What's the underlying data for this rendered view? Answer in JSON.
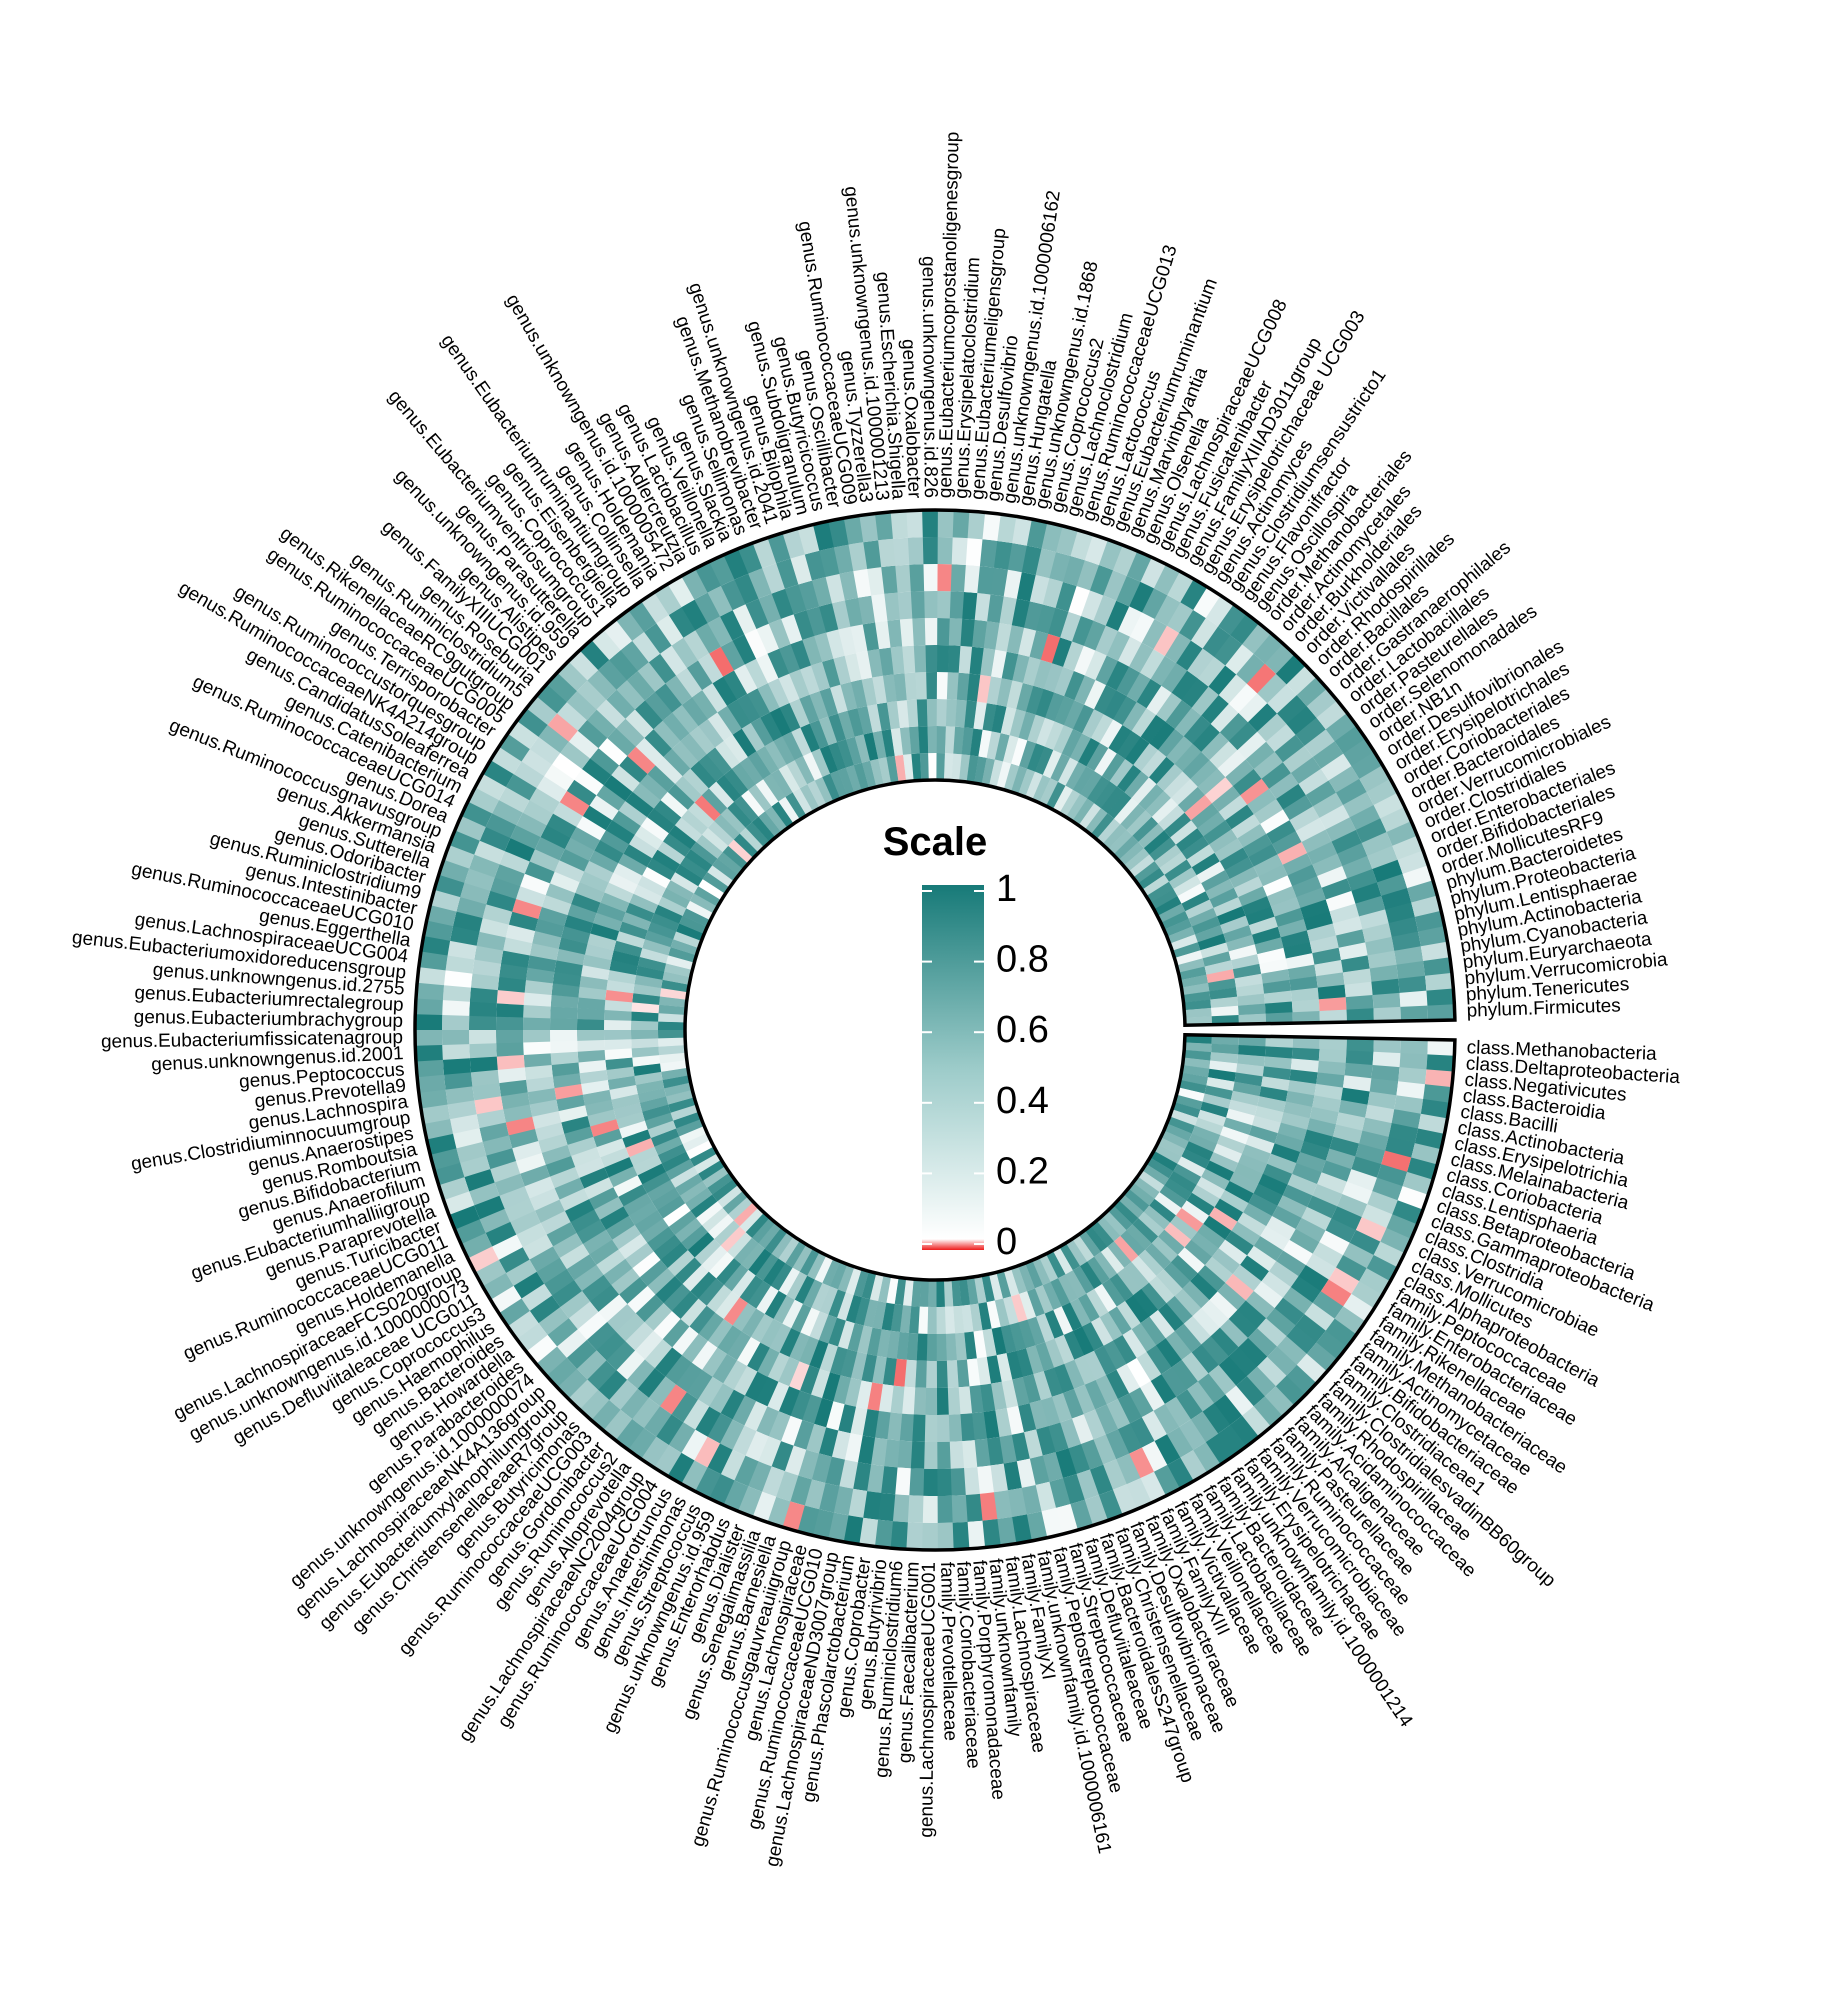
{
  "chart_data": {
    "type": "heatmap",
    "layout": "circular",
    "rings": 10,
    "legend": {
      "title": "Scale",
      "ticks": [
        "1",
        "0.8",
        "0.6",
        "0.4",
        "0.2",
        "0"
      ],
      "tick_values": [
        1,
        0.8,
        0.6,
        0.4,
        0.2,
        0
      ],
      "colors": {
        "high": "#177a78",
        "mid": "#ffffff",
        "zero": "#ee1c1c"
      }
    },
    "labels": [
      "class.Methanobacteria",
      "class.Deltaproteobacteria",
      "class.Negativicutes",
      "class.Bacteroidia",
      "class.Bacilli",
      "class.Actinobacteria",
      "class.Erysipelotrichia",
      "class.Melainabacteria",
      "class.Coriobacteria",
      "class.Lentisphaeria",
      "class.Betaproteobacteria",
      "class.Gammaproteobacteria",
      "class.Clostridia",
      "class.Verrucomicrobiae",
      "class.Mollicutes",
      "class.Alphaproteobacteria",
      "family.Peptococcaceae",
      "family.Enterobacteriaceae",
      "family.Rikenellaceae",
      "family.Methanobacteriaceae",
      "family.Actinomycetaceae",
      "family.Bifidobacteriaceae",
      "family.Clostridiaceae1",
      "family.ClostridialesvadinBB60group",
      "family.Rhodospirillaceae",
      "family.Acidaminococcaceae",
      "family.Alcaligenaceae",
      "family.Pasteurellaceae",
      "family.Ruminococcaceae",
      "family.Verrucomicrobiaceae",
      "family.Erysipelotrichaceae",
      "family.unknownfamily.id.1000001214",
      "family.Bacteroidaceae",
      "family.Lactobacillaceae",
      "family.Veillonellaceae",
      "family.Victivallaceae",
      "family.FamilyXIII",
      "family.Oxalobacteraceae",
      "family.Desulfovibrionaceae",
      "family.Christensenellaceae",
      "family.BacteroidalesS247group",
      "family.Defluviitaleaceae",
      "family.Streptococcaceae",
      "family.Peptostreptococcaceae",
      "family.unknownfamily.id.1000006161",
      "family.FamilyXI",
      "family.Lachnospiraceae",
      "family.unknownfamily",
      "family.Porphyromonadaceae",
      "family.Coriobacteriaceae",
      "family.Prevotellaceae",
      "genus.LachnospiraceaeUCG001",
      "genus.Faecalibacterium",
      "genus.Ruminiclostridium6",
      "genus.Butyrivibrio",
      "genus.Coprobacter",
      "genus.Phascolarctobacterium",
      "genus.LachnospiraceaeND3007group",
      "genus.RuminococcaceaeUCG010",
      "genus.Lachnospiraceae",
      "genus.Ruminococcusgauvreauiigroup",
      "genus.Barnesiella",
      "genus.Senegalimassilia",
      "genus.Dialister",
      "genus.Enterorhabdus",
      "genus.unknowngenus.id.959",
      "genus.Streptococcus",
      "genus.Intestinimonas",
      "genus.Anaerotruncus",
      "genus.RuminococcaceaeUCG004",
      "genus.LachnospiraceaeNC2004group",
      "genus.Alloprevotella",
      "genus.Ruminococcus2",
      "genus.Gordonibacter",
      "genus.RuminococcaceaeUCG003",
      "genus.Butyricimonas",
      "genus.ChristensenellaceaeR7group",
      "genus.Eubacteriumxylanophilumgroup",
      "genus.LachnospiraceaeNK4A136group",
      "genus.unknowngenus.id.1000000074",
      "genus.Parabacteroides",
      "genus.Howardella",
      "genus.Bacteroides",
      "genus.Haemophilus",
      "genus.Coprococcus3",
      "genus.Defluviitaleaceae UCG011",
      "genus.unknowngenus.id.1000000073",
      "genus.LachnospiraceaeFCS020group",
      "genus.Holdemanella",
      "genus.RuminococcaceaeUCG011",
      "genus.Turicibacter",
      "genus.Paraprevotella",
      "genus.Eubacteriumhalliigroup",
      "genus.Anaerofilum",
      "genus.Bifidobacterium",
      "genus.Romboutsia",
      "genus.Anaerostipes",
      "genus.Clostridiuminnocuumgroup",
      "genus.Lachnospira",
      "genus.Prevotella9",
      "genus.Peptococcus",
      "genus.unknowngenus.id.2001",
      "genus.Eubacteriumfissicatenagroup",
      "genus.Eubacteriumbrachygroup",
      "genus.Eubacteriumrectalegroup",
      "genus.unknowngenus.id.2755",
      "genus.Eubacteriumoxidoreducensgroup",
      "genus.LachnospiraceaeUCG004",
      "genus.Eggerthella",
      "genus.RuminococcaceaeUCG010",
      "genus.Intestinibacter",
      "genus.Ruminiclostridium9",
      "genus.Odoribacter",
      "genus.Sutterella",
      "genus.Akkermansia",
      "genus.Ruminococcusgnavusgroup",
      "genus.Dorea",
      "genus.RuminococcaceaeUCG014",
      "genus.Catenibacterium",
      "genus.CandidatusSoleaferrea",
      "genus.RuminococcaceaeNK4A214group",
      "genus.Ruminococcustorquesgroup",
      "genus.Terrisporobacter",
      "genus.RuminococcaceaeUCG005",
      "genus.RikenellaceaeRC9gutgroup",
      "genus.Ruminiclostridium5",
      "genus.Roseburia",
      "genus.FamilyXIIIUCG001",
      "genus.Alistipes",
      "genus.unknowngenus.id.959",
      "genus.Parasutterella",
      "genus.Eubacteriumventriosumgroup",
      "genus.Coprococcus1",
      "genus.Eisenbergiella",
      "genus.Eubacteriumruminantiumgroup",
      "genus.Collinsella",
      "genus.Holdemania",
      "genus.unknowngenus.id.1000005472",
      "genus.Adlercreutzia",
      "genus.Lactobacillus",
      "genus.Veillonella",
      "genus.Slackia",
      "genus.Sellimonas",
      "genus.Methanobrevibacter",
      "genus.unknowngenus.id.2041",
      "genus.Bilophila",
      "genus.Subdoligranulum",
      "genus.Butyricicoccus",
      "genus.Oscillibacter",
      "genus.RuminococcaceaeUCG009",
      "genus.Tyzzerella3",
      "genus.unknowngenus.id.1000001213",
      "genus.Escherichia.Shigella",
      "genus.Oxalobacter",
      "genus.unknowngenus.id.826",
      "genus.Eubacteriumcoprostanoligenesgroup",
      "genus.Erysipelatoclostridium",
      "genus.Eubacteriumeligensgroup",
      "genus.Desulfovibrio",
      "genus.unknowngenus.id.1000006162",
      "genus.Hungatella",
      "genus.unknowngenus.id.1868",
      "genus.Coprococcus2",
      "genus.Lachnoclostridium",
      "genus.RuminococcaceaeUCG013",
      "genus.Lactococcus",
      "genus.Eubacteriumruminantium",
      "genus.Marvinbryantia",
      "genus.Olsenella",
      "genus.LachnospiraceaeUCG008",
      "genus.Fusicatenibacter",
      "genus.FamilyXIIIAD3011group",
      "genus.Erysipelotrichaceae UCG003",
      "genus.Actinomyces",
      "genus.Clostridiumsensustricto1",
      "genus.Flavonifractor",
      "genus.Oscillospira",
      "order.Methanobacteriales",
      "order.Actinomycetales",
      "order.Burkholderiales",
      "order.Victivallales",
      "order.Rhodospirillales",
      "order.Bacillales",
      "order.Gastranaerophilales",
      "order.Lactobacillales",
      "order.Pasteurellales",
      "order.Selenomonadales",
      "order.NB1n",
      "order.Desulfovibrionales",
      "order.Erysipelotrichales",
      "order.Coriobacteriales",
      "order.Bacteroidales",
      "order.Verrucomicrobiales",
      "order.Clostridiales",
      "order.Enterobacteriales",
      "order.Bifidobacteriales",
      "order.MollicutesRF9",
      "phylum.Bacteroidetes",
      "phylum.Proteobacteria",
      "phylum.Lentisphaerae",
      "phylum.Actinobacteria",
      "phylum.Cyanobacteria",
      "phylum.Euryarchaeota",
      "phylum.Verrucomicrobia",
      "phylum.Tenericutes",
      "phylum.Firmicutes"
    ]
  }
}
